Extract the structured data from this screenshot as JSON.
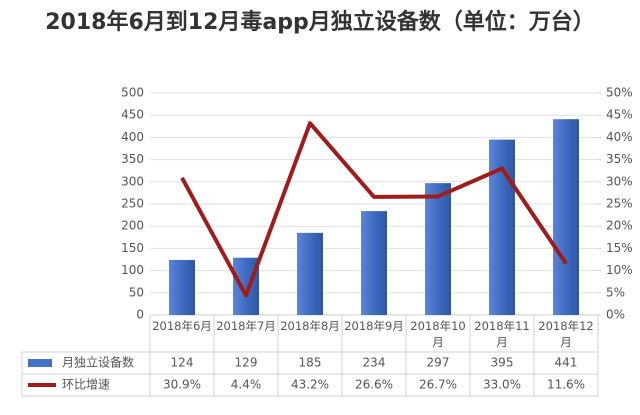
{
  "chart_data": {
    "type": "bar-line",
    "title": "2018年6月到12月毒app月独立设备数（单位：万台）",
    "categories": [
      "2018年6月",
      "2018年7月",
      "2018年8月",
      "2018年9月",
      "2018年10月",
      "2018年11月",
      "2018年12月"
    ],
    "series": [
      {
        "name": "月独立设备数",
        "type": "bar",
        "color": "#4472c4",
        "values": [
          124,
          129,
          185,
          234,
          297,
          395,
          441
        ]
      },
      {
        "name": "环比增速",
        "type": "line",
        "axis": "y2",
        "color": "#a01c1c",
        "values": [
          30.9,
          4.4,
          43.2,
          26.6,
          26.7,
          33.0,
          11.6
        ],
        "value_labels": [
          "30.9%",
          "4.4%",
          "43.2%",
          "26.6%",
          "26.7%",
          "33.0%",
          "11.6%"
        ]
      }
    ],
    "ylim": [
      0,
      500
    ],
    "yticks": [
      0,
      50,
      100,
      150,
      200,
      250,
      300,
      350,
      400,
      450,
      500
    ],
    "y2lim": [
      0,
      50
    ],
    "y2ticks": [
      {
        "value": 0,
        "label": "0%"
      },
      {
        "value": 5,
        "label": "5%"
      },
      {
        "value": 10,
        "label": "10%"
      },
      {
        "value": 15,
        "label": "15%"
      },
      {
        "value": 20,
        "label": "20%"
      },
      {
        "value": 25,
        "label": "25%"
      },
      {
        "value": 30,
        "label": "30%"
      },
      {
        "value": 35,
        "label": "35%"
      },
      {
        "value": 40,
        "label": "40%"
      },
      {
        "value": 45,
        "label": "45%"
      },
      {
        "value": 50,
        "label": "50%"
      }
    ]
  }
}
